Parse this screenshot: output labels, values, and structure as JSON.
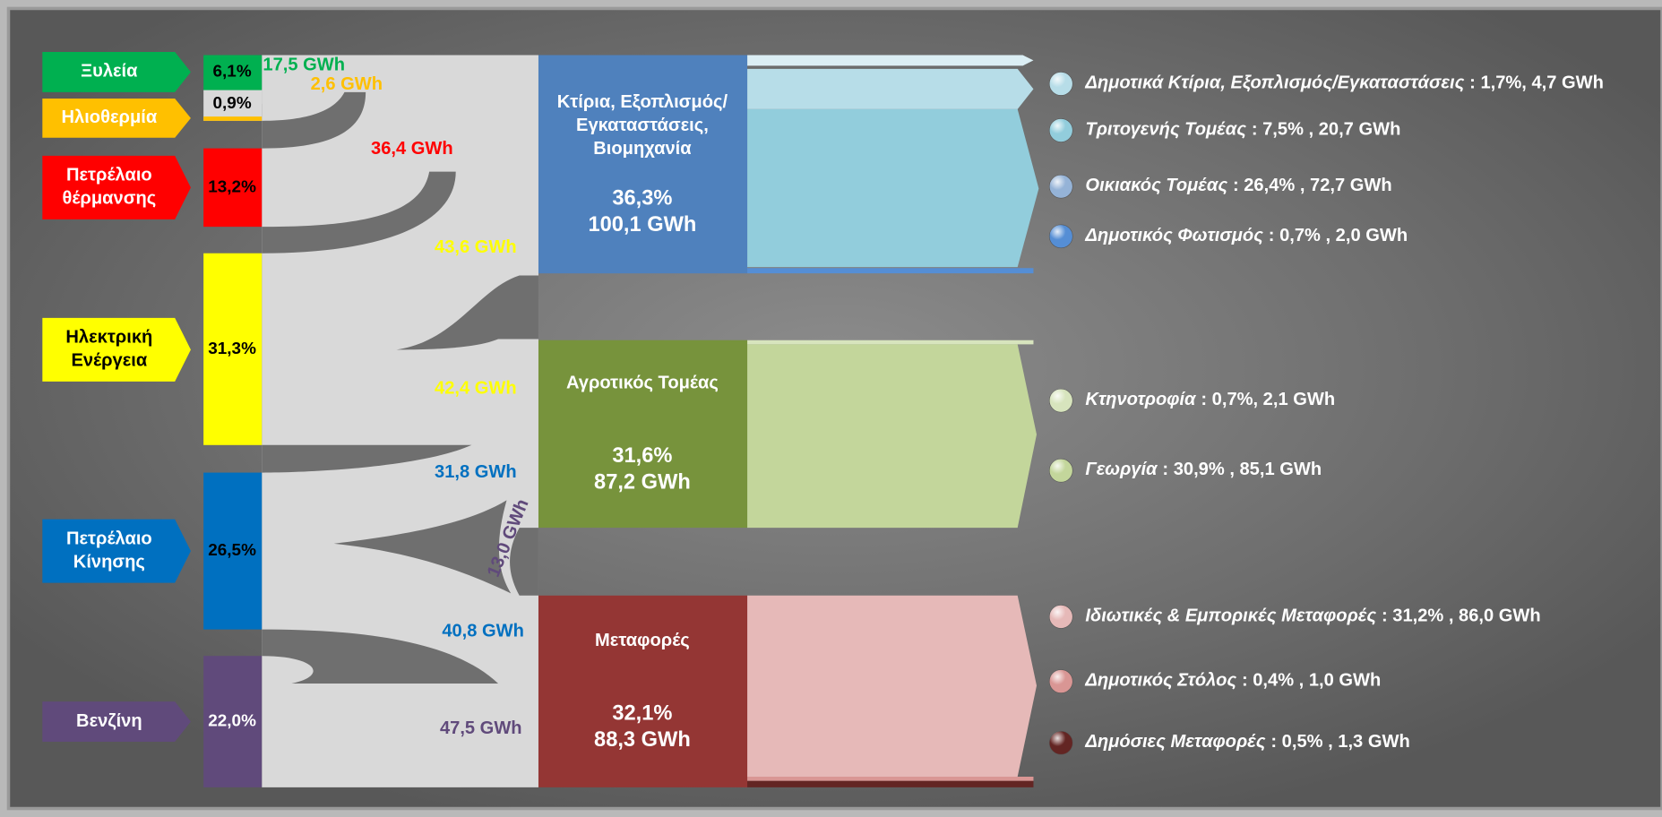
{
  "sources": [
    {
      "label_lines": [
        "Ξυλεία"
      ],
      "share": "6,1%"
    },
    {
      "label_lines": [
        "Ηλιοθερμία"
      ],
      "share": "0,9%"
    },
    {
      "label_lines": [
        "Πετρέλαιο",
        "θέρμανσης"
      ],
      "share": "13,2%"
    },
    {
      "label_lines": [
        "Ηλεκτρική",
        "Ενέργεια"
      ],
      "share": "31,3%"
    },
    {
      "label_lines": [
        "Πετρέλαιο",
        "Κίνησης"
      ],
      "share": "26,5%"
    },
    {
      "label_lines": [
        "Βενζίνη"
      ],
      "share": "22,0%"
    }
  ],
  "flows": [
    "17,5 GWh",
    "2,6 GWh",
    "36,4 GWh",
    "43,6 GWh",
    "42,4 GWh",
    "31,8 GWh",
    "13,0 GWh",
    "40,8 GWh",
    "47,5 GWh"
  ],
  "sectors": [
    {
      "title_lines": [
        "Κτίρια, Εξοπλισμός/",
        "Εγκαταστάσεις,",
        "Βιομηχανία"
      ],
      "share": "36,3%",
      "energy": "100,1 GWh",
      "uses": [
        {
          "name": "Δημοτικά Κτίρια, Εξοπλισμός/Εγκαταστάσεις",
          "detail": ": 1,7%, 4,7 GWh"
        },
        {
          "name": "Τριτογενής Τομέας",
          "detail": ": 7,5% , 20,7 GWh"
        },
        {
          "name": "Οικιακός Τομέας",
          "detail": ": 26,4% , 72,7 GWh"
        },
        {
          "name": "Δημοτικός Φωτισμός",
          "detail": ": 0,7% , 2,0 GWh"
        }
      ]
    },
    {
      "title_lines": [
        "Αγροτικός Τομέας"
      ],
      "share": "31,6%",
      "energy": "87,2 GWh",
      "uses": [
        {
          "name": "Κτηνοτροφία",
          "detail": ": 0,7%, 2,1 GWh"
        },
        {
          "name": "Γεωργία",
          "detail": ": 30,9% , 85,1 GWh"
        }
      ]
    },
    {
      "title_lines": [
        "Μεταφορές"
      ],
      "share": "32,1%",
      "energy": "88,3 GWh",
      "uses": [
        {
          "name": "Ιδιωτικές & Εμπορικές Μεταφορές",
          "detail": ": 31,2% , 86,0 GWh"
        },
        {
          "name": "Δημοτικός Στόλος",
          "detail": ": 0,4% , 1,0 GWh"
        },
        {
          "name": "Δημόσιες Μεταφορές",
          "detail": ": 0,5% , 1,3 GWh"
        }
      ]
    }
  ]
}
